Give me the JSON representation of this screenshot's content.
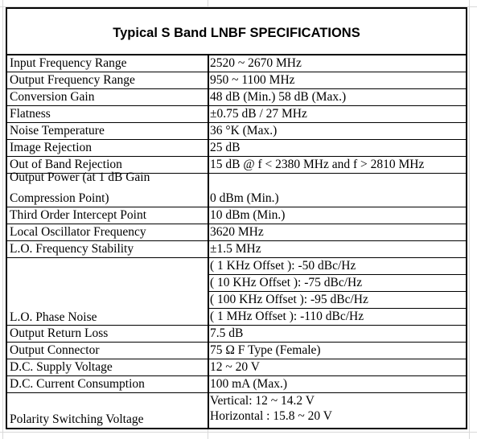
{
  "title": "Typical S Band LNBF SPECIFICATIONS",
  "rows": [
    {
      "label": "Input Frequency Range",
      "value": "2520 ~ 2670 MHz"
    },
    {
      "label": "Output Frequency Range",
      "value": "950 ~ 1100 MHz"
    },
    {
      "label": "Conversion Gain",
      "value": "48 dB (Min.) 58 dB (Max.)"
    },
    {
      "label": "Flatness",
      "value": "±0.75 dB / 27 MHz"
    },
    {
      "label": "Noise Temperature",
      "value": "36 °K (Max.)"
    },
    {
      "label": "Image Rejection",
      "value": "25 dB"
    },
    {
      "label": "Out of Band Rejection",
      "value": "15 dB @ f < 2380 MHz and f > 2810 MHz"
    },
    {
      "label_line1": "Output Power (at 1 dB Gain",
      "label_line2": "Compression Point)",
      "value": "0 dBm (Min.)"
    },
    {
      "label": "Third Order Intercept Point",
      "value": "10 dBm (Min.)"
    },
    {
      "label": "Local Oscillator Frequency",
      "value": "3620 MHz"
    },
    {
      "label": "L.O. Frequency Stability",
      "value": "±1.5 MHz"
    },
    {
      "label": "L.O. Phase Noise",
      "values": [
        "( 1 KHz Offset ):  -50 dBc/Hz",
        "( 10 KHz Offset ):  -75 dBc/Hz",
        "( 100 KHz Offset ):  -95 dBc/Hz",
        "( 1 MHz Offset ): -110 dBc/Hz"
      ]
    },
    {
      "label": "Output Return Loss",
      "value": "7.5 dB"
    },
    {
      "label": "Output Connector",
      "value": "75 Ω F Type (Female)"
    },
    {
      "label": "D.C. Supply Voltage",
      "value": "12 ~ 20 V"
    },
    {
      "label": "D.C. Current Consumption",
      "value": "100 mA (Max.)"
    },
    {
      "label": "Polarity Switching Voltage",
      "values": [
        "Vertical: 12 ~ 14.2 V",
        "Horizontal : 15.8 ~ 20 V"
      ]
    }
  ]
}
